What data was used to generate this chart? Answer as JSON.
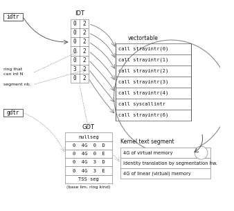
{
  "bg_color": "#ffffff",
  "idt_title": "IDT",
  "idt_rows": [
    [
      "0",
      "2"
    ],
    [
      "0",
      "2"
    ],
    [
      "0",
      "2"
    ],
    [
      "0",
      "2"
    ],
    [
      "0",
      "2"
    ],
    [
      "3",
      "2"
    ],
    [
      "0",
      "2"
    ]
  ],
  "idtr_label": "idtr",
  "gdtr_label": "gdtr",
  "ring_label1": "ring that",
  "ring_label2": "can int N",
  "segment_label": "segment nb.",
  "gdt_title": "GDT",
  "gdt_rows": [
    "nullseg",
    "0  4G  0  D",
    "0  4G  0  E",
    "0  4G  3  D",
    "0  4G  3  E",
    "TSS seg"
  ],
  "base_lim_label": "(base lim, ring kind)",
  "vector_table_label": "vectortable",
  "vector_entries": [
    "call strayintr(0)",
    "call strayintr(1)",
    "call strayintr(2)",
    "call strayintr(3)",
    "call strayintr(4)",
    "call syscallintr",
    "call strayintr(6)"
  ],
  "kernel_label": "Kernel text segment",
  "kernel_rows": [
    "4G of virtual memory",
    "Identity translation by segmentation hw.",
    "4G of linear (virtual) memory"
  ],
  "line_color": "#555555",
  "table_border_color": "#888888",
  "text_color": "#111111",
  "circle_color": "#888888",
  "arrow_color": "#888888",
  "idtr_arrow_color": "#444444"
}
